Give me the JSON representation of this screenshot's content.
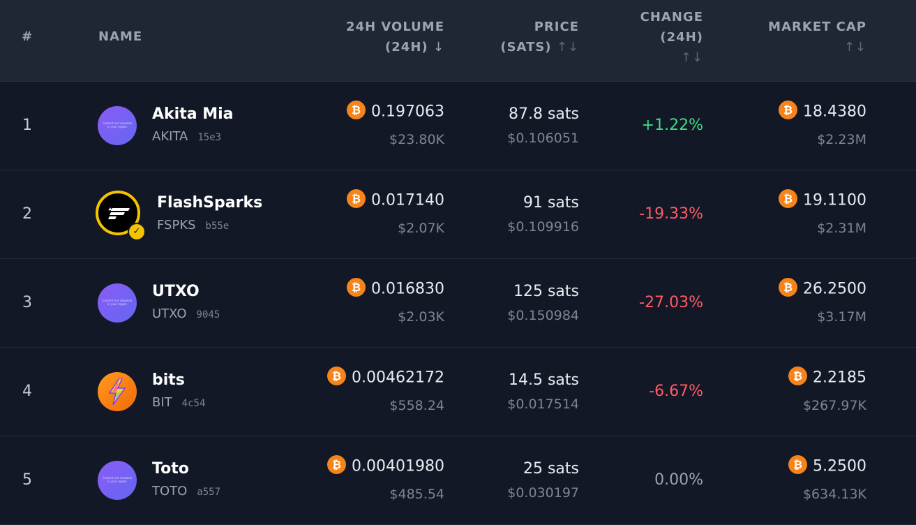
{
  "header": {
    "rank": "#",
    "name": "NAME",
    "volume_line1": "24H VOLUME",
    "volume_line2": "(24H)",
    "volume_sort": "↓",
    "price_line1": "PRICE",
    "price_line2": "(SATS)",
    "price_sort": "↑↓",
    "change_line1": "CHANGE",
    "change_line2": "(24H)",
    "change_sort": "↑↓",
    "mcap_line1": "MARKET CAP",
    "mcap_sort": "↑↓"
  },
  "rows": [
    {
      "rank": "1",
      "name": "Akita Mia",
      "ticker": "AKITA",
      "id": "15e3",
      "avatar": "content-unavailable-placeholder",
      "volume_btc": "0.197063",
      "volume_usd": "$23.80K",
      "price_sats": "87.8 sats",
      "price_usd": "$0.106051",
      "change": "+1.22%",
      "change_dir": "positive",
      "mcap_btc": "18.4380",
      "mcap_usd": "$2.23M"
    },
    {
      "rank": "2",
      "name": "FlashSparks",
      "ticker": "FSPKS",
      "id": "b55e",
      "avatar": "flashsparks-logo",
      "verified": true,
      "volume_btc": "0.017140",
      "volume_usd": "$2.07K",
      "price_sats": "91 sats",
      "price_usd": "$0.109916",
      "change": "-19.33%",
      "change_dir": "negative",
      "mcap_btc": "19.1100",
      "mcap_usd": "$2.31M"
    },
    {
      "rank": "3",
      "name": "UTXO",
      "ticker": "UTXO",
      "id": "9045",
      "avatar": "content-unavailable-placeholder",
      "volume_btc": "0.016830",
      "volume_usd": "$2.03K",
      "price_sats": "125 sats",
      "price_usd": "$0.150984",
      "change": "-27.03%",
      "change_dir": "negative",
      "mcap_btc": "26.2500",
      "mcap_usd": "$3.17M"
    },
    {
      "rank": "4",
      "name": "bits",
      "ticker": "BIT",
      "id": "4c54",
      "avatar": "lightning-bolt-logo",
      "volume_btc": "0.00462172",
      "volume_usd": "$558.24",
      "price_sats": "14.5 sats",
      "price_usd": "$0.017514",
      "change": "-6.67%",
      "change_dir": "negative",
      "mcap_btc": "2.2185",
      "mcap_usd": "$267.97K"
    },
    {
      "rank": "5",
      "name": "Toto",
      "ticker": "TOTO",
      "id": "a557",
      "avatar": "content-unavailable-placeholder",
      "volume_btc": "0.00401980",
      "volume_usd": "$485.54",
      "price_sats": "25 sats",
      "price_usd": "$0.030197",
      "change": "0.00%",
      "change_dir": "neutral",
      "mcap_btc": "5.2500",
      "mcap_usd": "$634.13K"
    }
  ],
  "placeholder_text": "Content not viewable in your region",
  "colors": {
    "positive": "#3ddc84",
    "negative": "#ff5b67",
    "neutral": "#9aa4b3",
    "btc": "#f7841a",
    "verified": "#f5c400"
  }
}
